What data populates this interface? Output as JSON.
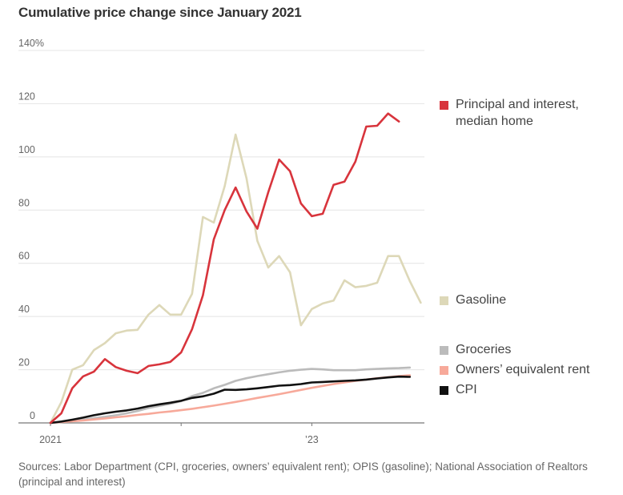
{
  "chart_data": {
    "type": "line",
    "title": "Cumulative price change since January 2021",
    "xlabel": "",
    "ylabel": "",
    "ylim": [
      0,
      140
    ],
    "yticks": [
      0,
      20,
      40,
      60,
      80,
      100,
      120,
      140
    ],
    "ytick_labels": [
      "0",
      "20",
      "40",
      "60",
      "80",
      "100",
      "120",
      "140%"
    ],
    "x_start": "2021-01",
    "x_unit": "month",
    "xlim_months": [
      0,
      34
    ],
    "xticks": [
      {
        "month_index": 0,
        "label": "2021"
      },
      {
        "month_index": 12,
        "label": ""
      },
      {
        "month_index": 24,
        "label": "’23"
      }
    ],
    "grid": true,
    "legend_placement": "right",
    "series": [
      {
        "name": "Principal and interest, median home",
        "color": "#d8343c",
        "values": [
          0,
          3.6,
          13,
          17.5,
          19.3,
          24,
          21,
          19.6,
          18.7,
          21.4,
          22,
          22.9,
          26.5,
          35.2,
          48,
          69,
          80,
          88.5,
          79.5,
          73,
          86.7,
          99,
          94.6,
          82.5,
          77.7,
          78.6,
          89.5,
          90.7,
          98.2,
          111.4,
          111.7,
          116.3,
          113.3
        ]
      },
      {
        "name": "Gasoline",
        "color": "#ddd8b8",
        "values": [
          0,
          7.8,
          20,
          21.7,
          27.4,
          30,
          33.7,
          34.7,
          35,
          40.7,
          44.3,
          40.7,
          40.7,
          48.5,
          77.4,
          75.3,
          89,
          108.4,
          92,
          68.4,
          58.4,
          62.7,
          56.6,
          36.7,
          42.8,
          44.9,
          46,
          53.6,
          51,
          51.5,
          52.7,
          62.7,
          62.7,
          53.3,
          45.2
        ]
      },
      {
        "name": "Groceries",
        "color": "#bbbbbb",
        "values": [
          0,
          0.3,
          0.7,
          1.2,
          1.8,
          2.3,
          2.9,
          3.6,
          4.5,
          5.6,
          6.4,
          7.2,
          8.2,
          10.1,
          11.3,
          13,
          14.3,
          15.8,
          16.8,
          17.6,
          18.3,
          19,
          19.6,
          20,
          20.3,
          20.1,
          19.8,
          19.8,
          19.8,
          20.1,
          20.3,
          20.5,
          20.6,
          20.8
        ]
      },
      {
        "name": "Owners’ equivalent rent",
        "color": "#f7a99a",
        "values": [
          0,
          0.3,
          0.6,
          0.9,
          1.3,
          1.7,
          2.1,
          2.5,
          3,
          3.4,
          3.9,
          4.3,
          4.8,
          5.3,
          5.9,
          6.5,
          7.2,
          7.9,
          8.6,
          9.4,
          10.1,
          10.8,
          11.6,
          12.4,
          13.2,
          13.9,
          14.6,
          15.2,
          15.8,
          16.3,
          16.8,
          17.2,
          17.6,
          17.9
        ]
      },
      {
        "name": "CPI",
        "color": "#111111",
        "values": [
          0,
          0.5,
          1.2,
          2,
          2.9,
          3.6,
          4.2,
          4.7,
          5.4,
          6.3,
          7,
          7.6,
          8.3,
          9.4,
          10,
          11,
          12.5,
          12.4,
          12.6,
          13,
          13.5,
          14,
          14.2,
          14.6,
          15.2,
          15.4,
          15.6,
          15.8,
          16,
          16.3,
          16.7,
          17.1,
          17.4,
          17.3
        ]
      }
    ]
  },
  "legend": [
    {
      "label": "Principal and interest, median home",
      "color": "#d8343c"
    },
    {
      "label": "Gasoline",
      "color": "#ddd8b8"
    },
    {
      "label": "Groceries",
      "color": "#bbbbbb"
    },
    {
      "label": "Owners’ equivalent rent",
      "color": "#f7a99a"
    },
    {
      "label": "CPI",
      "color": "#111111"
    }
  ],
  "source": "Sources: Labor Department (CPI, groceries, owners’ equivalent rent); OPIS (gasoline); National Association of Realtors (principal and interest)"
}
